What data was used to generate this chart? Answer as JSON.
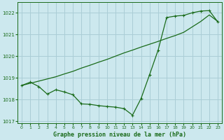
{
  "title": "Graphe pression niveau de la mer (hPa)",
  "background_color": "#cce8ee",
  "grid_color": "#aacdd6",
  "line_color": "#1a6b1a",
  "x_values": [
    0,
    1,
    2,
    3,
    4,
    5,
    6,
    7,
    8,
    9,
    10,
    11,
    12,
    13,
    14,
    15,
    16,
    17,
    18,
    19,
    20,
    21,
    22,
    23
  ],
  "y_smooth": [
    1018.65,
    1018.75,
    1018.85,
    1018.95,
    1019.05,
    1019.18,
    1019.3,
    1019.45,
    1019.58,
    1019.72,
    1019.85,
    1020.0,
    1020.15,
    1020.28,
    1020.42,
    1020.55,
    1020.68,
    1020.82,
    1020.95,
    1021.1,
    1021.35,
    1021.6,
    1021.9,
    1021.6
  ],
  "y_jagged": [
    1018.65,
    1018.8,
    1018.6,
    1018.25,
    1018.45,
    1018.35,
    1018.22,
    1017.8,
    1017.78,
    1017.72,
    1017.68,
    1017.65,
    1017.58,
    1017.28,
    1018.05,
    1019.15,
    1020.28,
    1021.78,
    1021.85,
    1021.88,
    1022.0,
    1022.08,
    1022.1,
    1021.58
  ],
  "ylim": [
    1016.9,
    1022.5
  ],
  "yticks": [
    1017,
    1018,
    1019,
    1020,
    1021,
    1022
  ],
  "xlim": [
    -0.5,
    23.5
  ],
  "xticks": [
    0,
    1,
    2,
    3,
    4,
    5,
    6,
    7,
    8,
    9,
    10,
    11,
    12,
    13,
    14,
    15,
    16,
    17,
    18,
    19,
    20,
    21,
    22,
    23
  ]
}
